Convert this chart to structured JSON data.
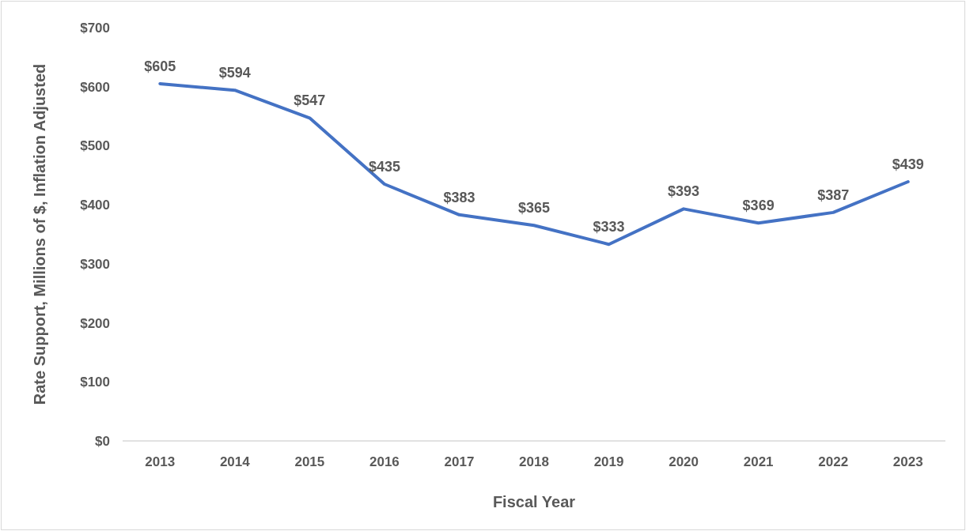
{
  "chart_data": {
    "type": "line",
    "xlabel": "Fiscal Year",
    "ylabel": "Rate Support, Millions of $, Inflation Adjusted",
    "categories": [
      "2013",
      "2014",
      "2015",
      "2016",
      "2017",
      "2018",
      "2019",
      "2020",
      "2021",
      "2022",
      "2023"
    ],
    "series": [
      {
        "color": "#4472c4",
        "values": [
          605,
          594,
          547,
          435,
          383,
          365,
          333,
          393,
          369,
          387,
          439
        ],
        "value_labels": [
          "$605",
          "$594",
          "$547",
          "$435",
          "$383",
          "$365",
          "$333",
          "$393",
          "$369",
          "$387",
          "$439"
        ]
      }
    ],
    "ylim": [
      0,
      700
    ],
    "yticks": [
      {
        "value": 0,
        "label": "$0"
      },
      {
        "value": 100,
        "label": "$100"
      },
      {
        "value": 200,
        "label": "$200"
      },
      {
        "value": 300,
        "label": "$300"
      },
      {
        "value": 400,
        "label": "$400"
      },
      {
        "value": 500,
        "label": "$500"
      },
      {
        "value": 600,
        "label": "$600"
      },
      {
        "value": 700,
        "label": "$700"
      }
    ]
  }
}
